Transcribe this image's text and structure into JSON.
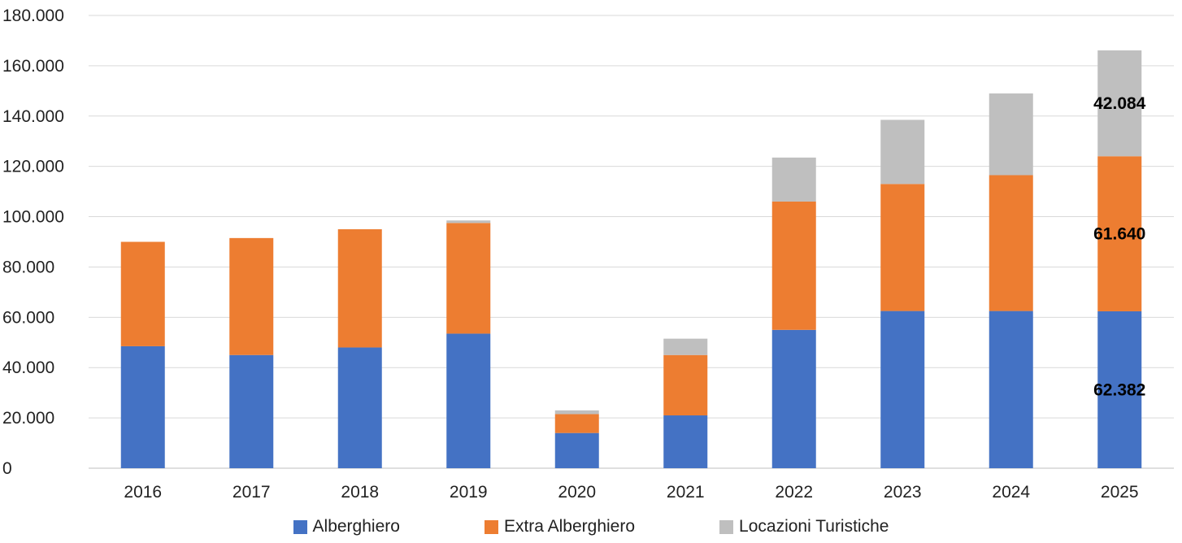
{
  "chart_data": {
    "type": "bar",
    "stacked": true,
    "title": "",
    "xlabel": "",
    "ylabel": "",
    "ylim": [
      0,
      180000
    ],
    "ytick_step": 20000,
    "ytick_labels": [
      "0",
      "20.000",
      "40.000",
      "60.000",
      "80.000",
      "100.000",
      "120.000",
      "140.000",
      "160.000",
      "180.000"
    ],
    "grid": true,
    "legend_position": "bottom",
    "categories": [
      "2016",
      "2017",
      "2018",
      "2019",
      "2020",
      "2021",
      "2022",
      "2023",
      "2024",
      "2025"
    ],
    "series": [
      {
        "name": "Alberghiero",
        "color": "#4472C4",
        "values": [
          48500,
          45000,
          48000,
          53500,
          14000,
          21000,
          55000,
          62500,
          62500,
          62382
        ]
      },
      {
        "name": "Extra Alberghiero",
        "color": "#ED7D31",
        "values": [
          41500,
          46500,
          47000,
          44000,
          7500,
          24000,
          51000,
          50500,
          54000,
          61640
        ]
      },
      {
        "name": "Locazioni Turistiche",
        "color": "#BFBFBF",
        "values": [
          0,
          0,
          0,
          1000,
          1500,
          6500,
          17500,
          25500,
          32500,
          42084
        ]
      }
    ],
    "data_labels": [
      {
        "category": "2025",
        "series": "Alberghiero",
        "text": "62.382"
      },
      {
        "category": "2025",
        "series": "Extra Alberghiero",
        "text": "61.640"
      },
      {
        "category": "2025",
        "series": "Locazioni Turistiche",
        "text": "42.084"
      }
    ]
  }
}
